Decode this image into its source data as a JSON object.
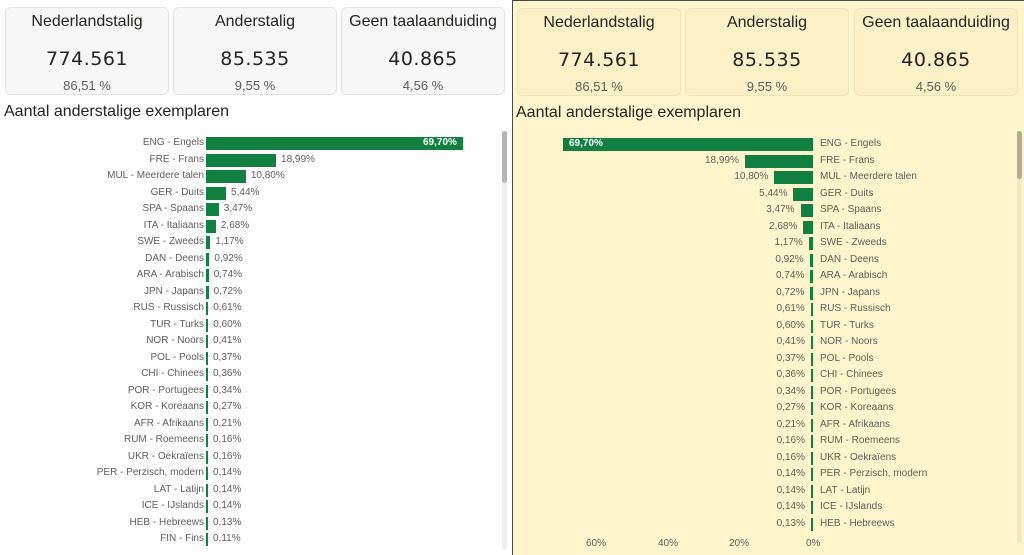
{
  "cards": [
    {
      "title": "Nederlandstalig",
      "value": "774.561",
      "percent": "86,51 %"
    },
    {
      "title": "Anderstalig",
      "value": "85.535",
      "percent": "9,55 %"
    },
    {
      "title": "Geen taalaanduiding",
      "value": "40.865",
      "percent": "4,56 %"
    }
  ],
  "left_panel": {
    "chart_title": "Aantal anderstalige exemplaren"
  },
  "right_panel": {
    "chart_title": "Aantal anderstalige exemplaren",
    "axis_ticks": [
      "60%",
      "40%",
      "20%",
      "0%"
    ]
  },
  "colors": {
    "bar": "#118040",
    "right_background": "#fff5cc"
  },
  "chart_data": [
    {
      "type": "bar",
      "orientation": "horizontal",
      "title": "Aantal anderstalige exemplaren",
      "categories": [
        "ENG - Engels",
        "FRE - Frans",
        "MUL - Meerdere talen",
        "GER - Duits",
        "SPA - Spaans",
        "ITA - Italiaans",
        "SWE - Zweeds",
        "DAN - Deens",
        "ARA - Arabisch",
        "JPN - Japans",
        "RUS - Russisch",
        "TUR - Turks",
        "NOR - Noors",
        "POL - Pools",
        "CHI - Chinees",
        "POR - Portugees",
        "KOR - Koreaans",
        "AFR - Afrikaans",
        "RUM - Roemeens",
        "UKR - Oekraïens",
        "PER - Perzisch, modern",
        "LAT - Latijn",
        "ICE - IJslands",
        "HEB - Hebreews",
        "FIN - Fins"
      ],
      "values": [
        69.7,
        18.99,
        10.8,
        5.44,
        3.47,
        2.68,
        1.17,
        0.92,
        0.74,
        0.72,
        0.61,
        0.6,
        0.41,
        0.37,
        0.36,
        0.34,
        0.27,
        0.21,
        0.16,
        0.16,
        0.14,
        0.14,
        0.14,
        0.13,
        0.11
      ],
      "labels": [
        "69,70%",
        "18,99%",
        "10,80%",
        "5,44%",
        "3,47%",
        "2,68%",
        "1,17%",
        "0,92%",
        "0,74%",
        "0,72%",
        "0,61%",
        "0,60%",
        "0,41%",
        "0,37%",
        "0,36%",
        "0,34%",
        "0,27%",
        "0,21%",
        "0,16%",
        "0,16%",
        "0,14%",
        "0,14%",
        "0,14%",
        "0,13%",
        "0,11%"
      ],
      "unit": "%"
    },
    {
      "type": "bar",
      "orientation": "horizontal-reversed",
      "title": "Aantal anderstalige exemplaren",
      "categories": [
        "ENG - Engels",
        "FRE - Frans",
        "MUL - Meerdere talen",
        "GER - Duits",
        "SPA - Spaans",
        "ITA - Italiaans",
        "SWE - Zweeds",
        "DAN - Deens",
        "ARA - Arabisch",
        "JPN - Japans",
        "RUS - Russisch",
        "TUR - Turks",
        "NOR - Noors",
        "POL - Pools",
        "CHI - Chinees",
        "POR - Portugees",
        "KOR - Koreaans",
        "AFR - Afrikaans",
        "RUM - Roemeens",
        "UKR - Oekraïens",
        "PER - Perzisch, modern",
        "LAT - Latijn",
        "ICE - IJslands",
        "HEB - Hebreews"
      ],
      "values": [
        69.7,
        18.99,
        10.8,
        5.44,
        3.47,
        2.68,
        1.17,
        0.92,
        0.74,
        0.72,
        0.61,
        0.6,
        0.41,
        0.37,
        0.36,
        0.34,
        0.27,
        0.21,
        0.16,
        0.16,
        0.14,
        0.14,
        0.14,
        0.13
      ],
      "labels": [
        "69,70%",
        "18,99%",
        "10,80%",
        "5,44%",
        "3,47%",
        "2,68%",
        "1,17%",
        "0,92%",
        "0,74%",
        "0,72%",
        "0,61%",
        "0,60%",
        "0,41%",
        "0,37%",
        "0,36%",
        "0,34%",
        "0,27%",
        "0,21%",
        "0,16%",
        "0,16%",
        "0,14%",
        "0,14%",
        "0,14%",
        "0,13%"
      ],
      "xlim": [
        70,
        0
      ],
      "xticks": [
        "60%",
        "40%",
        "20%",
        "0%"
      ],
      "unit": "%"
    }
  ]
}
